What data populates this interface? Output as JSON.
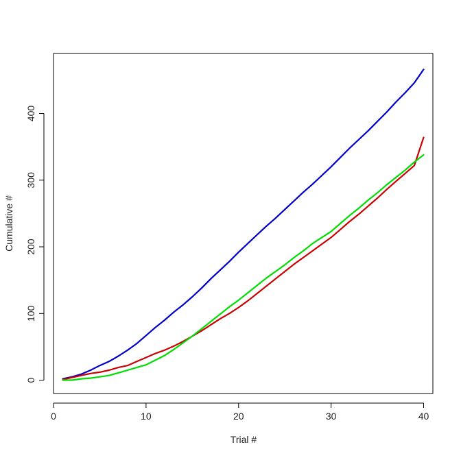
{
  "chart_data": {
    "type": "line",
    "title": "",
    "xlabel": "Trial #",
    "ylabel": "Cumulative #",
    "xlim": [
      0,
      41
    ],
    "ylim": [
      -20,
      490
    ],
    "xticks": [
      0,
      10,
      20,
      30,
      40
    ],
    "xtick_labels": [
      "0",
      "10",
      "20",
      "30",
      "40"
    ],
    "yticks": [
      0,
      100,
      200,
      300,
      400
    ],
    "ytick_labels": [
      "0",
      "100",
      "200",
      "300",
      "400"
    ],
    "grid": false,
    "legend": "none",
    "x": [
      1,
      2,
      3,
      4,
      5,
      6,
      7,
      8,
      9,
      10,
      11,
      12,
      13,
      14,
      15,
      16,
      17,
      18,
      19,
      20,
      21,
      22,
      23,
      24,
      25,
      26,
      27,
      28,
      29,
      30,
      31,
      32,
      33,
      34,
      35,
      36,
      37,
      38,
      39,
      40
    ],
    "series": [
      {
        "color": "#0000cc",
        "values": [
          2,
          5,
          9,
          15,
          22,
          28,
          36,
          45,
          55,
          67,
          79,
          90,
          102,
          113,
          125,
          138,
          152,
          165,
          178,
          192,
          205,
          218,
          231,
          243,
          256,
          269,
          282,
          294,
          307,
          320,
          334,
          348,
          361,
          374,
          388,
          402,
          417,
          431,
          446,
          466
        ]
      },
      {
        "color": "#cc0000",
        "values": [
          1,
          4,
          7,
          10,
          12,
          15,
          19,
          22,
          28,
          34,
          40,
          45,
          51,
          58,
          66,
          74,
          83,
          92,
          100,
          109,
          119,
          130,
          141,
          152,
          163,
          174,
          184,
          194,
          204,
          214,
          226,
          238,
          249,
          261,
          273,
          286,
          298,
          310,
          322,
          364
        ]
      },
      {
        "color": "#00dd00",
        "values": [
          0,
          0,
          2,
          3,
          5,
          7,
          11,
          15,
          19,
          23,
          30,
          37,
          46,
          56,
          66,
          77,
          88,
          99,
          110,
          120,
          131,
          142,
          153,
          163,
          173,
          184,
          194,
          205,
          214,
          223,
          235,
          247,
          258,
          270,
          281,
          293,
          304,
          315,
          327,
          338
        ]
      }
    ]
  }
}
